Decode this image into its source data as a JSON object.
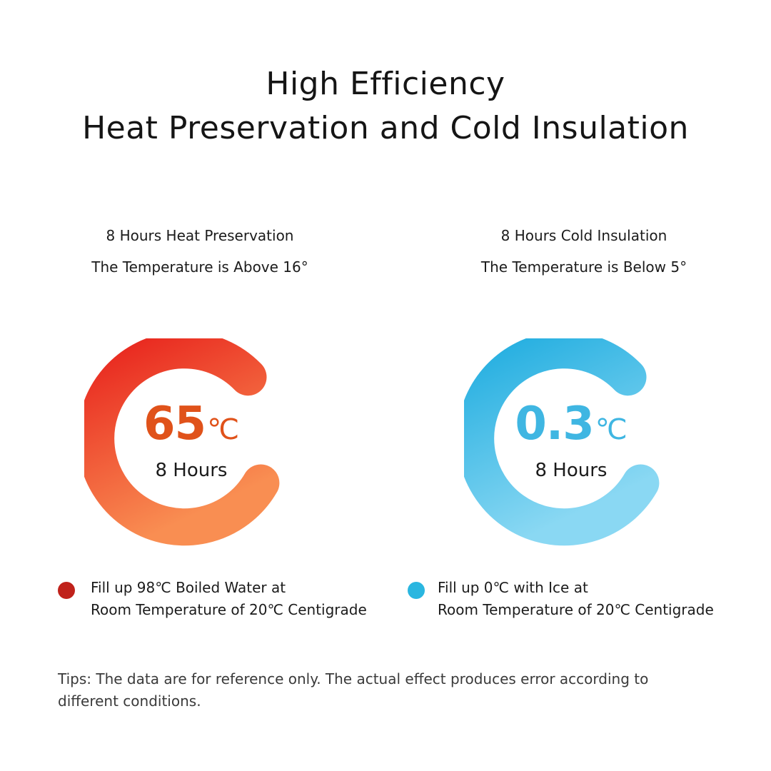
{
  "title": {
    "line1": "High Efficiency",
    "line2": "Heat Preservation and Cold Insulation"
  },
  "heat_panel": {
    "heading": "8 Hours Heat Preservation",
    "subheading": "The Temperature is Above 16°",
    "value": "65",
    "unit": "℃",
    "hours": "8 Hours",
    "legend_line1": "Fill up 98℃ Boiled Water at",
    "legend_line2": "Room Temperature of 20℃ Centigrade",
    "ring_colors": [
      "#e8251e",
      "#f98e52"
    ],
    "dot_color": "#c0221b"
  },
  "cold_panel": {
    "heading": "8 Hours Cold Insulation",
    "subheading": "The Temperature is Below 5°",
    "value": "0.3",
    "unit": "℃",
    "hours": "8 Hours",
    "legend_line1": "Fill up 0℃ with Ice at",
    "legend_line2": "Room Temperature of 20℃ Centigrade",
    "ring_colors": [
      "#23aee0",
      "#8ad8f3"
    ],
    "dot_color": "#2ab6e0"
  },
  "tips": {
    "line1": "Tips: The data are for reference only. The actual effect produces error according to",
    "line2": "different conditions."
  }
}
